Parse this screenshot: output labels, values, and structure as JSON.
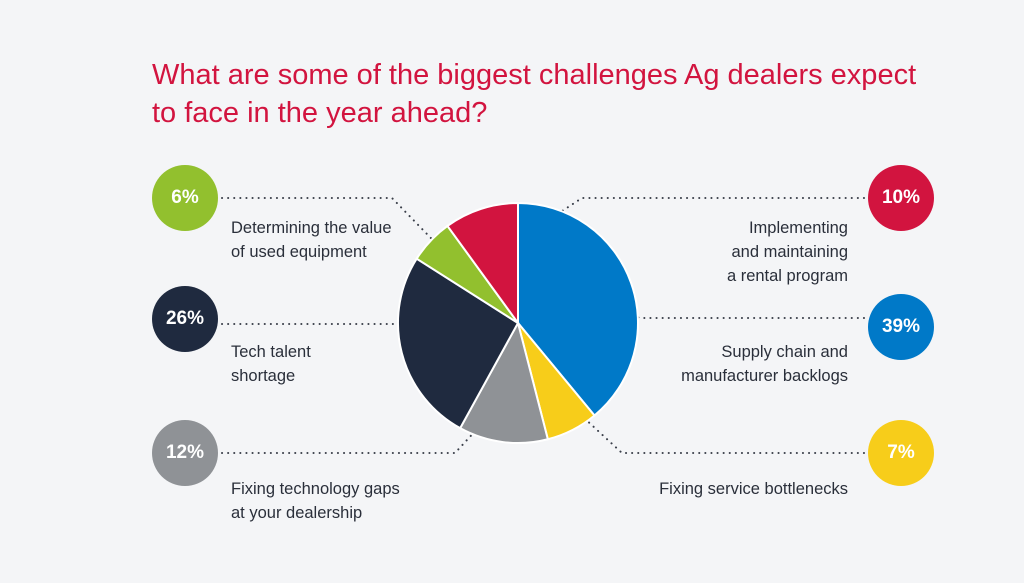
{
  "chart_data": {
    "type": "pie",
    "title": [
      "What are some of the biggest challenges Ag dealers expect",
      "to face in the year ahead?"
    ],
    "slices": [
      {
        "key": "supply",
        "label": [
          "Supply chain and",
          "manufacturer backlogs"
        ],
        "value": 39,
        "value_label": "39%",
        "color": "#0079c8"
      },
      {
        "key": "service",
        "label": [
          "Fixing service bottlenecks"
        ],
        "value": 7,
        "value_label": "7%",
        "color": "#f7cd1a"
      },
      {
        "key": "techgap",
        "label": [
          "Fixing technology gaps",
          "at your dealership"
        ],
        "value": 12,
        "value_label": "12%",
        "color": "#8f9296"
      },
      {
        "key": "talent",
        "label": [
          "Tech talent",
          "shortage"
        ],
        "value": 26,
        "value_label": "26%",
        "color": "#1f2a3f"
      },
      {
        "key": "value",
        "label": [
          "Determining the value",
          "of used equipment"
        ],
        "value": 6,
        "value_label": "6%",
        "color": "#92c02e"
      },
      {
        "key": "rental",
        "label": [
          "Implementing",
          "and maintaining",
          "a rental program"
        ],
        "value": 10,
        "value_label": "10%",
        "color": "#d2143f"
      }
    ]
  }
}
